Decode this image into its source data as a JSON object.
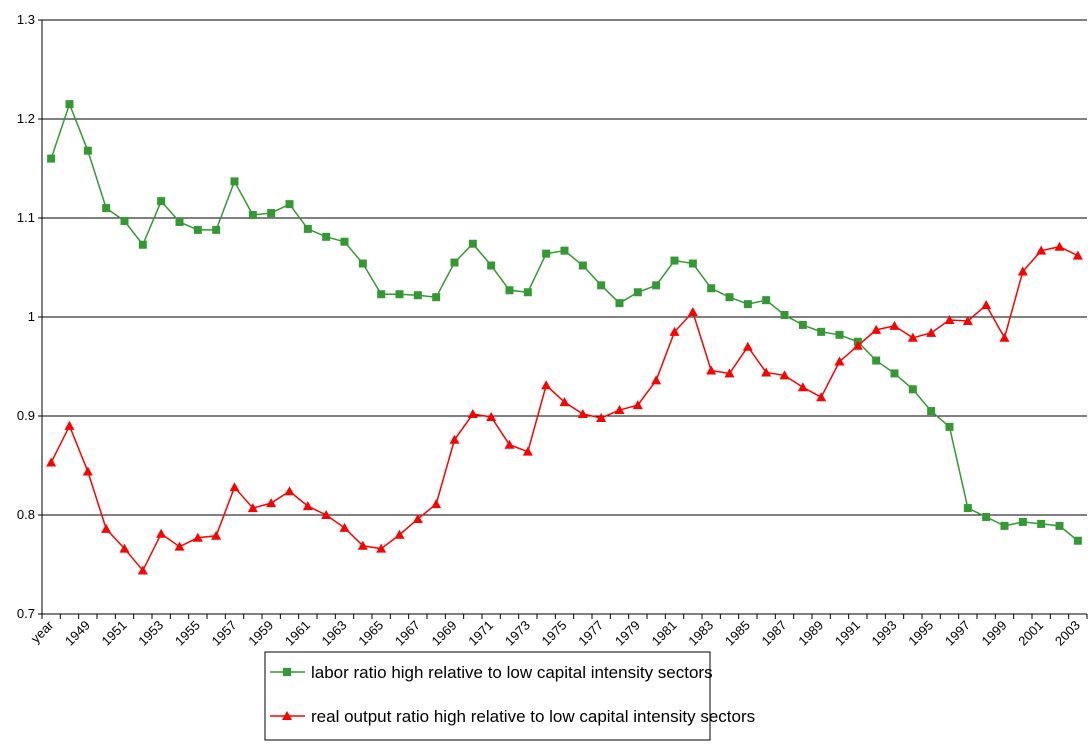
{
  "chart_data": {
    "type": "line",
    "categories": [
      "year",
      null,
      "1949",
      null,
      "1951",
      null,
      "1953",
      null,
      "1955",
      null,
      "1957",
      null,
      "1959",
      null,
      "1961",
      null,
      "1963",
      null,
      "1965",
      null,
      "1967",
      null,
      "1969",
      null,
      "1971",
      null,
      "1973",
      null,
      "1975",
      null,
      "1977",
      null,
      "1979",
      null,
      "1981",
      null,
      "1983",
      null,
      "1985",
      null,
      "1987",
      null,
      "1989",
      null,
      "1991",
      null,
      "1993",
      null,
      "1995",
      null,
      "1997",
      null,
      "1999",
      null,
      "2001",
      null,
      "2003"
    ],
    "series": [
      {
        "name": "labor ratio high relative to low capital intensity sectors",
        "color": "#339933",
        "marker": "square",
        "values": [
          1.16,
          1.215,
          1.168,
          1.11,
          1.097,
          1.073,
          1.117,
          1.096,
          1.088,
          1.088,
          1.137,
          1.103,
          1.105,
          1.114,
          1.089,
          1.081,
          1.076,
          1.054,
          1.023,
          1.023,
          1.022,
          1.02,
          1.055,
          1.074,
          1.052,
          1.027,
          1.025,
          1.064,
          1.067,
          1.052,
          1.032,
          1.014,
          1.025,
          1.032,
          1.057,
          1.054,
          1.029,
          1.02,
          1.013,
          1.017,
          1.002,
          0.992,
          0.985,
          0.982,
          0.975,
          0.956,
          0.943,
          0.927,
          0.905,
          0.889,
          0.807,
          0.798,
          0.789,
          0.793,
          0.791,
          0.789,
          0.774
        ]
      },
      {
        "name": "real output ratio high relative to low capital intensity sectors",
        "color": "#ff0000",
        "marker": "triangle",
        "values": [
          0.853,
          0.89,
          0.844,
          0.786,
          0.766,
          0.744,
          0.781,
          0.768,
          0.777,
          0.779,
          0.828,
          0.807,
          0.812,
          0.824,
          0.809,
          0.8,
          0.787,
          0.769,
          0.766,
          0.78,
          0.796,
          0.811,
          0.876,
          0.902,
          0.899,
          0.871,
          0.864,
          0.931,
          0.914,
          0.902,
          0.898,
          0.906,
          0.911,
          0.936,
          0.985,
          1.005,
          0.946,
          0.943,
          0.97,
          0.944,
          0.941,
          0.929,
          0.919,
          0.955,
          0.971,
          0.987,
          0.991,
          0.979,
          0.984,
          0.997,
          0.996,
          1.012,
          0.979,
          1.046,
          1.067,
          1.071,
          1.062
        ]
      }
    ],
    "ylim": [
      0.7,
      1.3
    ],
    "yticks": [
      0.7,
      0.8,
      0.9,
      1,
      1.1,
      1.2,
      1.3
    ],
    "grid": true,
    "legend": "bottom"
  }
}
